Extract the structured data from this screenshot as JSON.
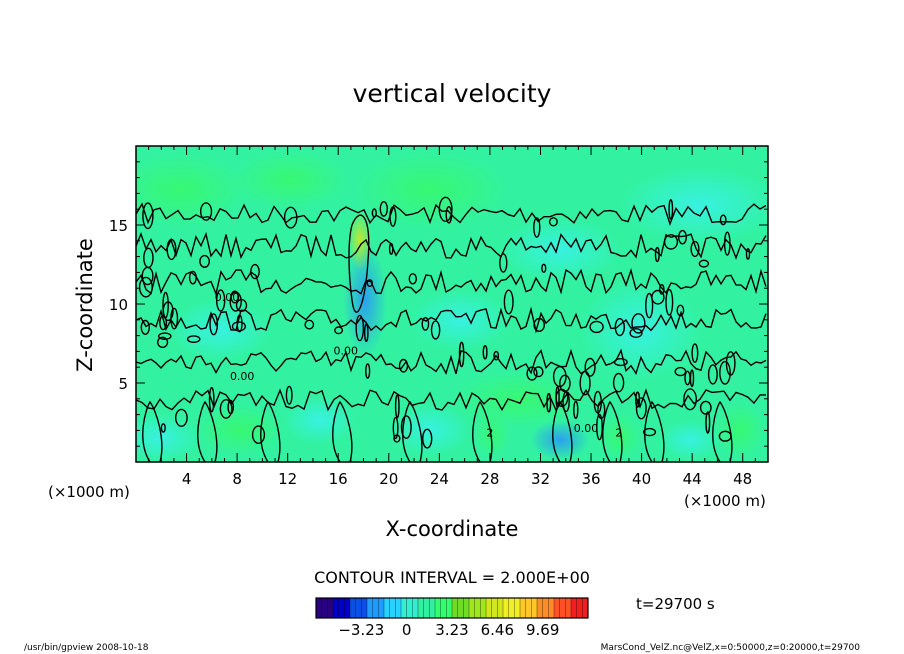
{
  "chart_data": {
    "type": "heatmap",
    "title": "vertical velocity",
    "xlabel": "X-coordinate",
    "ylabel": "Z-coordinate",
    "x_unit": "(×1000 m)",
    "y_unit": "(×1000 m)",
    "xlim": [
      0,
      50
    ],
    "ylim": [
      0,
      20
    ],
    "x_ticks": [
      4,
      8,
      12,
      16,
      20,
      24,
      28,
      32,
      36,
      40,
      44,
      48
    ],
    "y_ticks": [
      5,
      10,
      15
    ],
    "contour_interval": "CONTOUR INTERVAL = 2.000E+00",
    "contour_labels": [
      {
        "text": "0.00",
        "x": 7.2,
        "z": 10.2
      },
      {
        "text": "0.00",
        "x": 8.4,
        "z": 5.2
      },
      {
        "text": "0.00",
        "x": 16.6,
        "z": 6.8
      },
      {
        "text": "0.00",
        "x": 35.6,
        "z": 1.9
      },
      {
        "text": "2",
        "x": 28.0,
        "z": 1.6
      },
      {
        "text": "2",
        "x": 38.2,
        "z": 1.6
      }
    ],
    "colorbar": {
      "ticks": [
        -3.23,
        0,
        3.23,
        6.46,
        9.69
      ],
      "tick_labels": [
        "−3.23",
        "0",
        "3.23",
        "6.46",
        "9.69"
      ],
      "range": [
        -6.46,
        12.92
      ],
      "colors": [
        "#2a0080",
        "#0000c8",
        "#0a50e6",
        "#1e9bff",
        "#28d2ff",
        "#30f0d0",
        "#30f0a0",
        "#30ff70",
        "#6edc28",
        "#a0e61e",
        "#d2e61e",
        "#f0f028",
        "#ffc828",
        "#ff8c28",
        "#ff5028",
        "#f01e1e"
      ]
    },
    "time_label": "t=29700 s",
    "footer_left": "/usr/bin/gpview   2008-10-18",
    "footer_right": "MarsCond_VelZ.nc@VelZ,x=0:50000,z=0:20000,t=29700"
  }
}
